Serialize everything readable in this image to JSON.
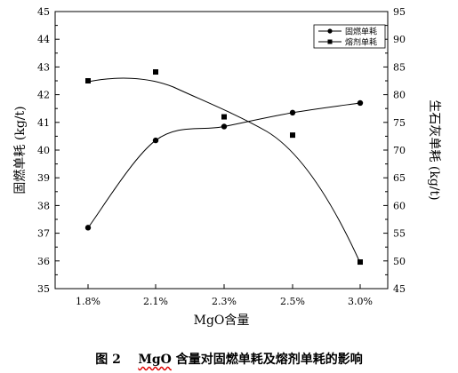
{
  "chart_data": {
    "type": "line",
    "categories": [
      "1.8%",
      "2.1%",
      "2.3%",
      "2.5%",
      "3.0%"
    ],
    "xlabel": "MgO含量",
    "left_axis": {
      "label": "固燃单耗 (kg/t)",
      "ylim": [
        35,
        45
      ],
      "ticks": [
        35,
        36,
        37,
        38,
        39,
        40,
        41,
        42,
        43,
        44,
        45
      ]
    },
    "right_axis": {
      "label": "生石灰单耗 (kg/t)",
      "ylim": [
        45,
        95
      ],
      "ticks": [
        45,
        50,
        55,
        60,
        65,
        70,
        75,
        80,
        85,
        90,
        95
      ]
    },
    "series": [
      {
        "name": "固燃单耗",
        "axis": "left",
        "marker": "circle",
        "values": [
          37.2,
          40.35,
          40.85,
          41.35,
          41.7
        ]
      },
      {
        "name": "熔剂单耗",
        "axis": "right",
        "marker": "square",
        "values": [
          82.5,
          84.1,
          76.0,
          72.7,
          49.8
        ]
      }
    ],
    "legend_position": "top-right",
    "grid": false
  },
  "caption": {
    "figure_no": "图 2",
    "prefix": "MgO",
    "text": " 含量对固燃单耗及熔剂单耗的影响"
  }
}
